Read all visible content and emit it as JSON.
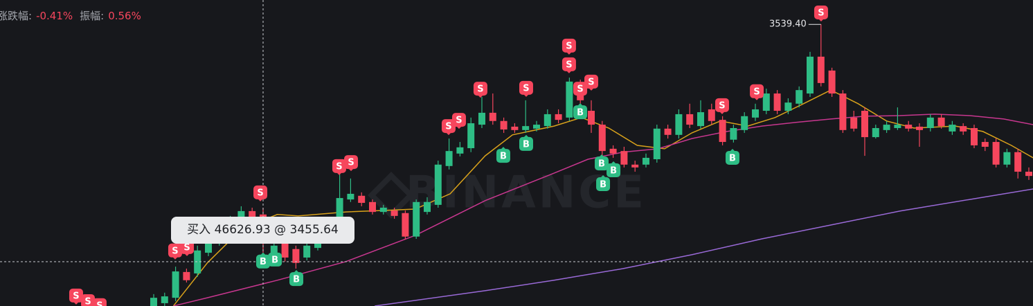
{
  "header": {
    "change_label": "涨跌幅:",
    "change": "-0.41%",
    "amplitude_label": "振幅:",
    "amplitude": "0.56%"
  },
  "tooltip": {
    "text": "买入 46626.93 @ 3455.64"
  },
  "chart_data": {
    "type": "candlestick",
    "watermark": "BINANCE",
    "up_color": "#2ebd85",
    "down_color": "#f6465d",
    "xlim": [
      -14.05,
      80.38
    ],
    "ylim": [
      3440,
      3548
    ],
    "open": [
      3440.0,
      3441.0,
      3442.9,
      3452.0,
      3451.5,
      3458.8,
      3462.5,
      3463.7,
      3469.3,
      3473.5,
      3472.3,
      3458.1,
      3462.5,
      3460.1,
      3457.1,
      3460.5,
      3463.7,
      3467.4,
      3477.6,
      3478.9,
      3476.7,
      3473.2,
      3473.7,
      3472.8,
      3464.5,
      3473.2,
      3475.7,
      3489.4,
      3493.8,
      3495.7,
      3504.0,
      3508.2,
      3505.3,
      3503.3,
      3502.1,
      3502.6,
      3503.5,
      3507.7,
      3506.5,
      3518.7,
      3508.9,
      3504.0,
      3495.5,
      3494.7,
      3489.9,
      3489.9,
      3491.8,
      3502.6,
      3500.4,
      3507.7,
      3503.5,
      3509.4,
      3505.7,
      3498.7,
      3502.1,
      3506.5,
      3508.9,
      3515.0,
      3508.9,
      3511.4,
      3515.0,
      3528.0,
      3523.1,
      3515.0,
      3506.5,
      3508.9,
      3499.6,
      3502.1,
      3502.8,
      3504.0,
      3503.3,
      3502.8,
      3506.5,
      3501.6,
      3503.5,
      3502.8,
      3497.9,
      3497.9,
      3489.9,
      3494.3,
      3487.4
    ],
    "high": [
      3444.2,
      3444.7,
      3453.9,
      3453.2,
      3461.3,
      3465.4,
      3467.4,
      3471.8,
      3475.2,
      3474.7,
      3474.7,
      3462.5,
      3463.7,
      3461.3,
      3463.0,
      3466.2,
      3468.6,
      3486.9,
      3485.0,
      3480.1,
      3477.6,
      3475.7,
      3474.7,
      3473.7,
      3477.6,
      3478.4,
      3491.3,
      3499.1,
      3497.9,
      3506.5,
      3513.8,
      3515.0,
      3506.5,
      3504.5,
      3512.6,
      3505.3,
      3509.4,
      3509.4,
      3520.6,
      3519.9,
      3512.6,
      3505.3,
      3496.7,
      3496.2,
      3491.3,
      3493.8,
      3504.0,
      3504.0,
      3509.4,
      3511.4,
      3512.6,
      3511.4,
      3507.0,
      3504.0,
      3508.4,
      3511.4,
      3516.7,
      3516.2,
      3513.3,
      3517.5,
      3529.7,
      3539.4,
      3524.1,
      3516.2,
      3508.9,
      3510.1,
      3504.0,
      3505.3,
      3510.1,
      3505.3,
      3504.5,
      3507.7,
      3507.7,
      3505.3,
      3504.5,
      3504.0,
      3499.1,
      3499.1,
      3495.5,
      3495.5,
      3488.9
    ],
    "low": [
      3440.0,
      3440.0,
      3441.7,
      3448.3,
      3450.3,
      3457.6,
      3461.3,
      3462.5,
      3468.4,
      3469.8,
      3458.8,
      3456.4,
      3455.7,
      3453.2,
      3456.1,
      3459.6,
      3462.5,
      3466.2,
      3476.7,
      3475.2,
      3472.3,
      3472.3,
      3470.8,
      3463.5,
      3463.7,
      3472.3,
      3474.7,
      3488.2,
      3492.8,
      3494.3,
      3502.8,
      3504.0,
      3501.1,
      3501.1,
      3501.1,
      3501.6,
      3502.6,
      3504.5,
      3505.3,
      3511.4,
      3501.1,
      3493.0,
      3492.3,
      3488.9,
      3487.4,
      3488.9,
      3490.6,
      3499.1,
      3499.1,
      3502.8,
      3502.6,
      3504.0,
      3496.7,
      3497.7,
      3501.1,
      3505.3,
      3507.7,
      3507.7,
      3507.7,
      3510.1,
      3513.8,
      3517.5,
      3513.8,
      3501.1,
      3501.6,
      3493.0,
      3499.1,
      3501.1,
      3502.1,
      3501.6,
      3496.2,
      3501.6,
      3502.6,
      3500.4,
      3500.4,
      3495.7,
      3494.7,
      3488.9,
      3488.9,
      3485.0,
      3484.5
    ],
    "close": [
      3442.9,
      3443.4,
      3452.2,
      3449.1,
      3459.6,
      3463.7,
      3464.9,
      3469.8,
      3473.5,
      3471.0,
      3462.5,
      3461.3,
      3457.1,
      3455.2,
      3461.3,
      3464.9,
      3467.4,
      3478.1,
      3479.6,
      3476.4,
      3473.2,
      3474.7,
      3471.8,
      3464.5,
      3476.7,
      3476.7,
      3489.9,
      3494.7,
      3496.0,
      3504.5,
      3508.2,
      3505.3,
      3502.3,
      3502.1,
      3503.5,
      3504.0,
      3507.7,
      3505.7,
      3519.2,
      3512.6,
      3504.0,
      3494.7,
      3493.8,
      3489.9,
      3488.9,
      3492.3,
      3502.6,
      3500.4,
      3507.7,
      3504.0,
      3508.4,
      3505.3,
      3497.9,
      3502.8,
      3507.0,
      3509.4,
      3515.0,
      3508.9,
      3511.8,
      3516.2,
      3528.0,
      3518.7,
      3515.0,
      3502.1,
      3502.6,
      3499.6,
      3502.8,
      3504.0,
      3504.0,
      3502.6,
      3502.1,
      3506.5,
      3503.5,
      3504.0,
      3501.6,
      3496.7,
      3496.2,
      3489.9,
      3494.3,
      3487.4,
      3485.9
    ],
    "lines": [
      {
        "color": "#d9a21b",
        "x": [
          1.8,
          4.9,
          8.1,
          11.3,
          13.2,
          17.6,
          20.8,
          23.9,
          27.1,
          30.3,
          32.8,
          36.6,
          39.1,
          41.6,
          44.2,
          46.7,
          49.2,
          51.8,
          54.3,
          56.8,
          59.4,
          61.9,
          64.4,
          67.0,
          69.5,
          73.3,
          75.8,
          78.4,
          80.4
        ],
        "values": [
          3440.0,
          3455.2,
          3467.4,
          3472.3,
          3471.8,
          3473.2,
          3473.7,
          3474.2,
          3479.6,
          3493.0,
          3500.4,
          3503.5,
          3506.5,
          3502.8,
          3496.7,
          3495.5,
          3501.1,
          3505.3,
          3503.5,
          3506.5,
          3511.4,
          3516.2,
          3511.4,
          3505.3,
          3502.8,
          3503.5,
          3501.6,
          3496.7,
          3492.3
        ]
      },
      {
        "color": "#c8378f",
        "x": [
          1.8,
          4.9,
          11.3,
          17.6,
          23.9,
          30.3,
          36.6,
          39.7,
          42.9,
          46.1,
          49.2,
          52.4,
          55.6,
          58.7,
          61.9,
          65.1,
          68.2,
          71.4,
          74.6,
          77.7,
          80.4
        ],
        "values": [
          3440.0,
          3442.9,
          3449.1,
          3455.7,
          3464.9,
          3477.2,
          3486.9,
          3491.8,
          3494.3,
          3495.5,
          3499.1,
          3501.6,
          3503.5,
          3504.8,
          3506.0,
          3507.0,
          3507.2,
          3507.7,
          3507.2,
          3506.0,
          3504.0
        ]
      },
      {
        "color": "#9a6ad8",
        "x": [
          20.2,
          30.3,
          36.6,
          42.9,
          49.2,
          55.6,
          61.9,
          68.2,
          74.6,
          80.4
        ],
        "values": [
          3440.0,
          3445.4,
          3449.1,
          3453.2,
          3458.1,
          3463.7,
          3468.6,
          3473.5,
          3477.6,
          3481.3
        ]
      }
    ],
    "high_label": {
      "value": 3539.4,
      "label": "3539.40"
    },
    "crosshair": {
      "x": 10,
      "price": 3455.64
    },
    "markers": [
      {
        "label": "S",
        "x": 1.96,
        "price": 3459.6
      },
      {
        "label": "S",
        "x": 3.04,
        "price": 3460.8
      },
      {
        "label": "S",
        "x": 9.75,
        "price": 3480.1
      },
      {
        "label": "S",
        "x": 16.96,
        "price": 3489.4
      },
      {
        "label": "S",
        "x": 18.04,
        "price": 3490.8
      },
      {
        "label": "S",
        "x": 26.96,
        "price": 3503.5
      },
      {
        "label": "S",
        "x": 27.91,
        "price": 3505.7
      },
      {
        "label": "S",
        "x": 29.87,
        "price": 3516.7
      },
      {
        "label": "S",
        "x": 34.05,
        "price": 3517.0
      },
      {
        "label": "S",
        "x": 37.97,
        "price": 3531.9
      },
      {
        "label": "S",
        "x": 37.97,
        "price": 3525.3
      },
      {
        "label": "S",
        "x": 38.99,
        "price": 3516.7
      },
      {
        "label": "S",
        "x": 40.0,
        "price": 3519.2
      },
      {
        "label": "S",
        "x": 51.96,
        "price": 3510.9
      },
      {
        "label": "S",
        "x": 55.13,
        "price": 3515.8
      },
      {
        "label": "S",
        "x": 61.01,
        "price": 3543.6
      },
      {
        "label": "S",
        "x": -7.09,
        "price": 3443.7
      },
      {
        "label": "S",
        "x": -6.01,
        "price": 3441.7
      },
      {
        "label": "S",
        "x": -4.94,
        "price": 3440.3
      },
      {
        "label": "B",
        "x": 10.0,
        "price": 3455.7
      },
      {
        "label": "B",
        "x": 11.08,
        "price": 3456.4
      },
      {
        "label": "B",
        "x": 13.04,
        "price": 3449.5
      },
      {
        "label": "B",
        "x": 31.96,
        "price": 3493.0
      },
      {
        "label": "B",
        "x": 34.05,
        "price": 3497.2
      },
      {
        "label": "B",
        "x": 38.99,
        "price": 3508.4
      },
      {
        "label": "B",
        "x": 40.95,
        "price": 3490.3
      },
      {
        "label": "B",
        "x": 42.03,
        "price": 3487.9
      },
      {
        "label": "B",
        "x": 41.08,
        "price": 3483.0
      },
      {
        "label": "B",
        "x": 52.91,
        "price": 3492.3
      }
    ]
  }
}
